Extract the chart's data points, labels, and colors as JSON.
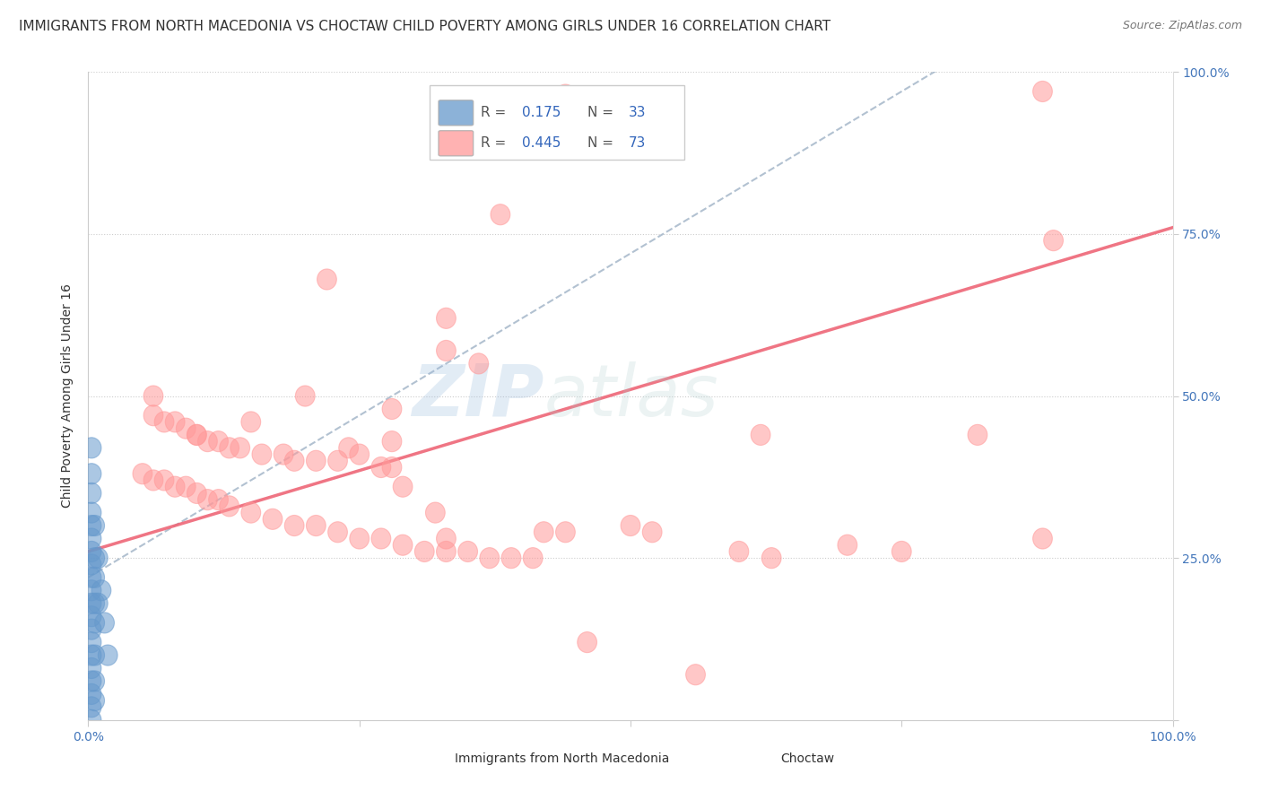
{
  "title": "IMMIGRANTS FROM NORTH MACEDONIA VS CHOCTAW CHILD POVERTY AMONG GIRLS UNDER 16 CORRELATION CHART",
  "source": "Source: ZipAtlas.com",
  "ylabel": "Child Poverty Among Girls Under 16",
  "xlim": [
    0,
    1.0
  ],
  "ylim": [
    0,
    1.0
  ],
  "legend1_r": "0.175",
  "legend1_n": "33",
  "legend2_r": "0.445",
  "legend2_n": "73",
  "blue_color": "#6699CC",
  "pink_color": "#FF9999",
  "blue_line_color": "#AABBCC",
  "pink_line_color": "#EE6677",
  "watermark": "ZIPatlas",
  "background_color": "#FFFFFF",
  "blue_points": [
    [
      0.003,
      0.42
    ],
    [
      0.003,
      0.35
    ],
    [
      0.003,
      0.32
    ],
    [
      0.003,
      0.3
    ],
    [
      0.003,
      0.28
    ],
    [
      0.003,
      0.26
    ],
    [
      0.003,
      0.24
    ],
    [
      0.003,
      0.22
    ],
    [
      0.003,
      0.2
    ],
    [
      0.003,
      0.18
    ],
    [
      0.003,
      0.16
    ],
    [
      0.003,
      0.14
    ],
    [
      0.003,
      0.12
    ],
    [
      0.003,
      0.1
    ],
    [
      0.003,
      0.08
    ],
    [
      0.003,
      0.06
    ],
    [
      0.003,
      0.04
    ],
    [
      0.003,
      0.02
    ],
    [
      0.003,
      0.0
    ],
    [
      0.006,
      0.3
    ],
    [
      0.006,
      0.25
    ],
    [
      0.006,
      0.22
    ],
    [
      0.006,
      0.18
    ],
    [
      0.006,
      0.15
    ],
    [
      0.006,
      0.1
    ],
    [
      0.006,
      0.06
    ],
    [
      0.006,
      0.03
    ],
    [
      0.009,
      0.25
    ],
    [
      0.009,
      0.18
    ],
    [
      0.012,
      0.2
    ],
    [
      0.015,
      0.15
    ],
    [
      0.018,
      0.1
    ],
    [
      0.003,
      0.38
    ]
  ],
  "pink_points": [
    [
      0.38,
      0.96
    ],
    [
      0.44,
      0.965
    ],
    [
      0.455,
      0.96
    ],
    [
      0.88,
      0.97
    ],
    [
      0.38,
      0.78
    ],
    [
      0.22,
      0.68
    ],
    [
      0.33,
      0.62
    ],
    [
      0.33,
      0.57
    ],
    [
      0.36,
      0.55
    ],
    [
      0.06,
      0.5
    ],
    [
      0.28,
      0.48
    ],
    [
      0.06,
      0.47
    ],
    [
      0.07,
      0.46
    ],
    [
      0.08,
      0.46
    ],
    [
      0.09,
      0.45
    ],
    [
      0.1,
      0.44
    ],
    [
      0.1,
      0.44
    ],
    [
      0.11,
      0.43
    ],
    [
      0.12,
      0.43
    ],
    [
      0.13,
      0.42
    ],
    [
      0.14,
      0.42
    ],
    [
      0.16,
      0.41
    ],
    [
      0.18,
      0.41
    ],
    [
      0.19,
      0.4
    ],
    [
      0.21,
      0.4
    ],
    [
      0.23,
      0.4
    ],
    [
      0.25,
      0.41
    ],
    [
      0.27,
      0.39
    ],
    [
      0.28,
      0.39
    ],
    [
      0.05,
      0.38
    ],
    [
      0.06,
      0.37
    ],
    [
      0.07,
      0.37
    ],
    [
      0.08,
      0.36
    ],
    [
      0.09,
      0.36
    ],
    [
      0.1,
      0.35
    ],
    [
      0.11,
      0.34
    ],
    [
      0.12,
      0.34
    ],
    [
      0.13,
      0.33
    ],
    [
      0.15,
      0.32
    ],
    [
      0.17,
      0.31
    ],
    [
      0.19,
      0.3
    ],
    [
      0.21,
      0.3
    ],
    [
      0.23,
      0.29
    ],
    [
      0.25,
      0.28
    ],
    [
      0.27,
      0.28
    ],
    [
      0.29,
      0.27
    ],
    [
      0.31,
      0.26
    ],
    [
      0.33,
      0.26
    ],
    [
      0.35,
      0.26
    ],
    [
      0.37,
      0.25
    ],
    [
      0.39,
      0.25
    ],
    [
      0.41,
      0.25
    ],
    [
      0.62,
      0.44
    ],
    [
      0.28,
      0.43
    ],
    [
      0.33,
      0.28
    ],
    [
      0.42,
      0.29
    ],
    [
      0.44,
      0.29
    ],
    [
      0.5,
      0.3
    ],
    [
      0.52,
      0.29
    ],
    [
      0.6,
      0.26
    ],
    [
      0.63,
      0.25
    ],
    [
      0.7,
      0.27
    ],
    [
      0.75,
      0.26
    ],
    [
      0.82,
      0.44
    ],
    [
      0.46,
      0.12
    ],
    [
      0.56,
      0.07
    ],
    [
      0.89,
      0.74
    ],
    [
      0.88,
      0.28
    ],
    [
      0.2,
      0.5
    ],
    [
      0.24,
      0.42
    ],
    [
      0.29,
      0.36
    ],
    [
      0.32,
      0.32
    ],
    [
      0.15,
      0.46
    ]
  ],
  "title_fontsize": 11,
  "tick_fontsize": 10,
  "legend_fontsize": 11
}
